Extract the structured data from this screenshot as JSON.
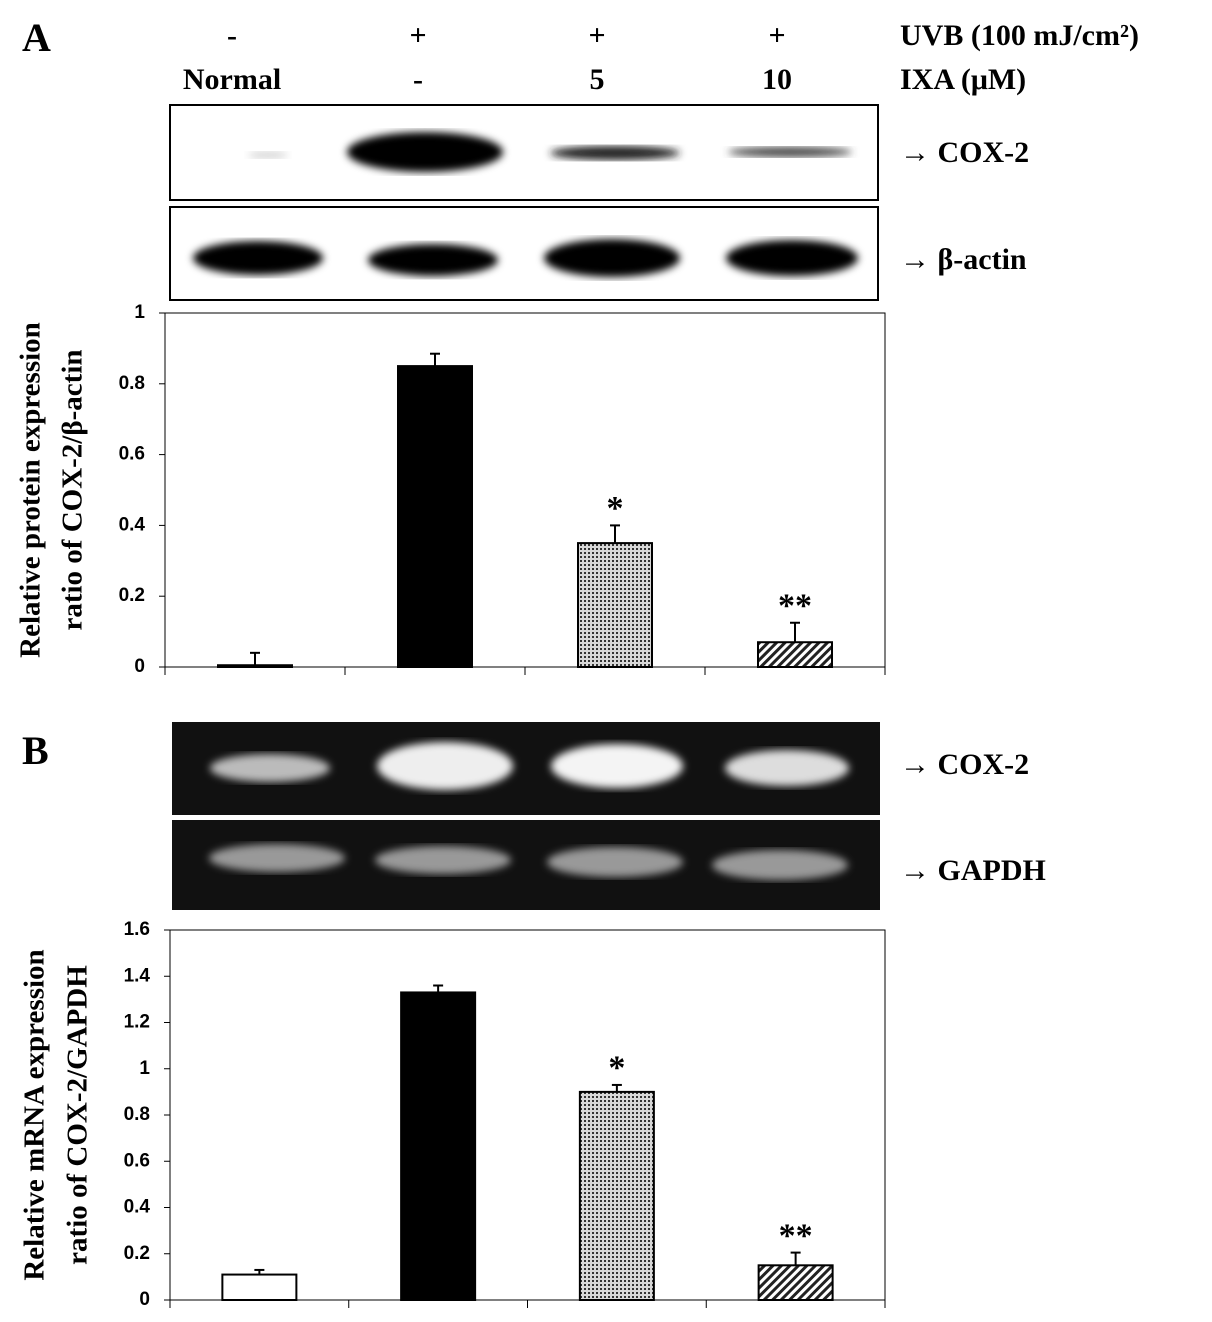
{
  "header": {
    "rows": [
      [
        "-",
        "+",
        "+",
        "+",
        "UVB (100 mJ/cm²)"
      ],
      [
        "Normal",
        "-",
        "5",
        "10",
        "IXA  (μM)"
      ]
    ]
  },
  "chart_data": [
    {
      "type": "bar",
      "panel": "A",
      "blot_labels": [
        "→ COX-2",
        "→ β-actin"
      ],
      "ylabel": [
        "Relative  protein expression",
        "ratio of COX-2/β-actin"
      ],
      "categories": [
        null,
        null,
        null,
        null
      ],
      "values": [
        0.005,
        0.85,
        0.35,
        0.07
      ],
      "errors": [
        0.035,
        0.035,
        0.05,
        0.055
      ],
      "annotations": [
        null,
        null,
        "*",
        "**"
      ],
      "fills": [
        "white",
        "black",
        "dots",
        "hatch"
      ],
      "ylim": [
        0,
        1
      ],
      "yticks": [
        0,
        0.2,
        0.4,
        0.6,
        0.8,
        1
      ]
    },
    {
      "type": "bar",
      "panel": "B",
      "blot_labels": [
        "→ COX-2",
        "→ GAPDH"
      ],
      "ylabel": [
        "Relative mRNA expression",
        "ratio of COX-2/GAPDH"
      ],
      "categories": [
        null,
        null,
        null,
        null
      ],
      "values": [
        0.11,
        1.33,
        0.9,
        0.15
      ],
      "errors": [
        0.02,
        0.03,
        0.03,
        0.055
      ],
      "annotations": [
        null,
        null,
        "*",
        "**"
      ],
      "fills": [
        "white",
        "black",
        "dots",
        "hatch"
      ],
      "ylim": [
        0,
        1.6
      ],
      "yticks": [
        0,
        0.2,
        0.4,
        0.6,
        0.8,
        1,
        1.2,
        1.4,
        1.6
      ]
    }
  ]
}
